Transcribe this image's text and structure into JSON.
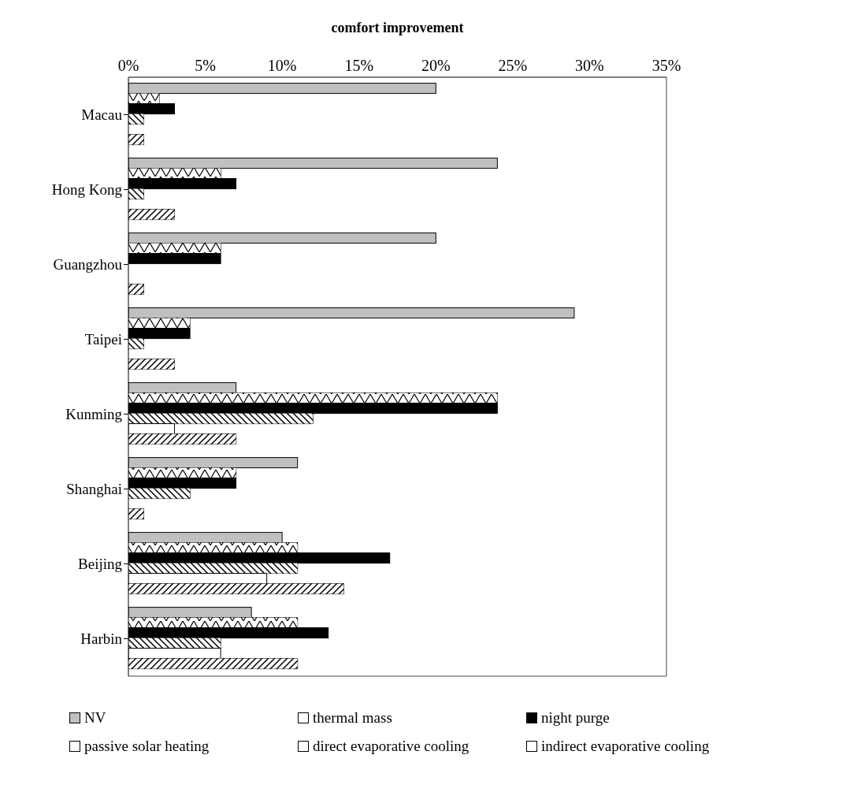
{
  "chart_data": {
    "type": "bar",
    "orientation": "horizontal",
    "xlabel": "comfort improvement",
    "categories": [
      "Macau",
      "Hong Kong",
      "Guangzhou",
      "Taipei",
      "Kunming",
      "Shanghai",
      "Beijing",
      "Harbin"
    ],
    "series": [
      {
        "name": "NV",
        "color": "#c0c0c0",
        "values": [
          20,
          24,
          20,
          29,
          7,
          11,
          10,
          8
        ]
      },
      {
        "name": "thermal mass",
        "color": "#ffffff",
        "values": [
          2,
          6,
          6,
          4,
          24,
          7,
          11,
          11
        ]
      },
      {
        "name": "night purge",
        "color": "#000000",
        "values": [
          3,
          7,
          6,
          4,
          24,
          7,
          17,
          13
        ]
      },
      {
        "name": "passive solar heating",
        "color": "#ffffff",
        "values": [
          1,
          1,
          0,
          1,
          12,
          4,
          11,
          6
        ]
      },
      {
        "name": "direct evaporative cooling",
        "color": "#ffffff",
        "values": [
          0,
          0,
          0,
          0,
          3,
          0,
          9,
          6
        ]
      },
      {
        "name": "indirect evaporative cooling",
        "color": "#ffffff",
        "values": [
          1,
          3,
          1,
          3,
          7,
          1,
          14,
          11
        ]
      }
    ],
    "xlim": [
      0,
      35
    ],
    "xticks": [
      {
        "value": 0,
        "label": "0%"
      },
      {
        "value": 5,
        "label": "5%"
      },
      {
        "value": 10,
        "label": "10%"
      },
      {
        "value": 15,
        "label": "15%"
      },
      {
        "value": 20,
        "label": "20%"
      },
      {
        "value": 25,
        "label": "25%"
      },
      {
        "value": 30,
        "label": "30%"
      },
      {
        "value": 35,
        "label": "35%"
      }
    ],
    "grid": false,
    "legend": "bottom"
  }
}
